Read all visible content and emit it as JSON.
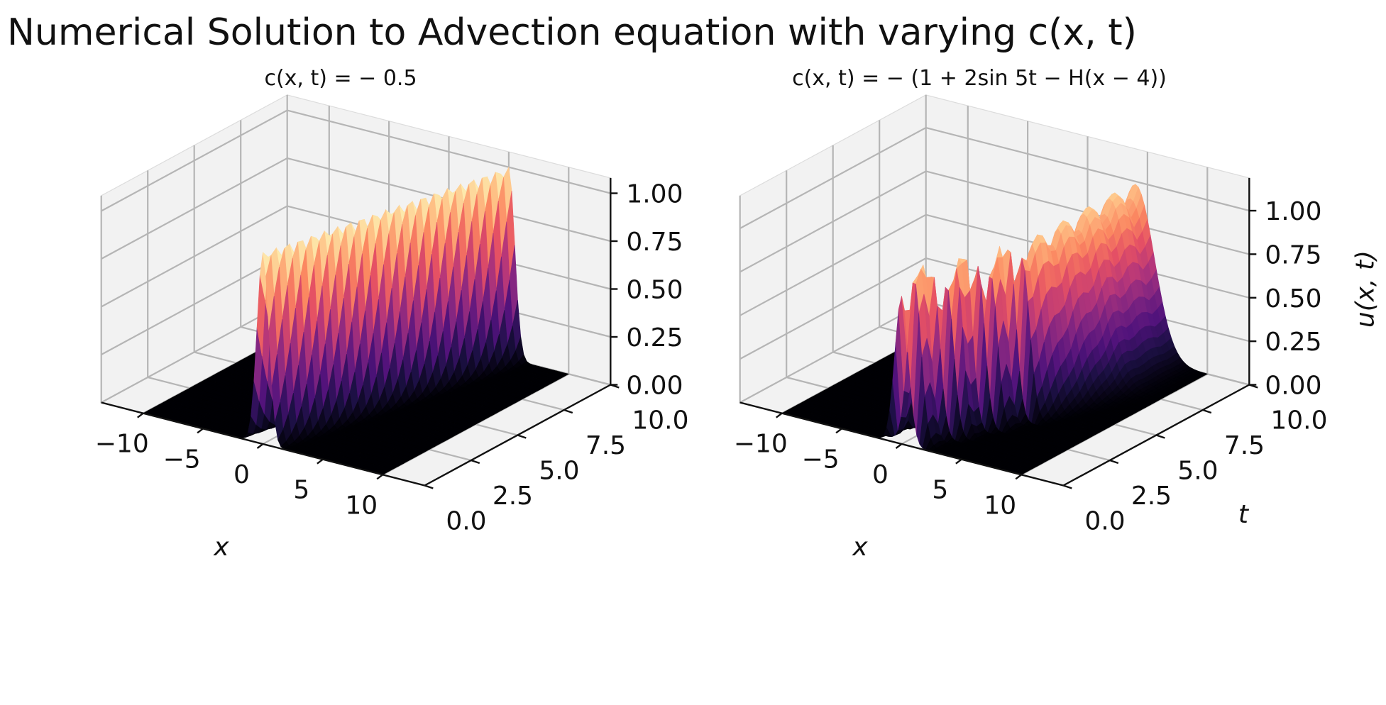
{
  "figure": {
    "title": "Numerical Solution to Advection equation with varying c(x, t)"
  },
  "chart_data": [
    {
      "type": "surface3d",
      "title": "c(x, t) = − 0.5",
      "xlabel": "x",
      "ylabel": "",
      "zlabel": "",
      "x_ticks": [
        "−10",
        "−5",
        "0",
        "5",
        "10"
      ],
      "t_ticks": [
        "0.0",
        "2.5",
        "5.0",
        "7.5",
        "10.0"
      ],
      "z_ticks": [
        "0.00",
        "0.25",
        "0.50",
        "0.75",
        "1.00"
      ],
      "xlim": [
        -12,
        12
      ],
      "tlim": [
        0,
        10
      ],
      "zlim": [
        0,
        1
      ],
      "colormap": "magma",
      "pulse": {
        "x0_at_t0": 0,
        "speed": 0.5,
        "width": 0.7,
        "amplitude": 1.0
      }
    },
    {
      "type": "surface3d",
      "title": "c(x, t) = − (1 + 2sin 5t − H(x − 4))",
      "xlabel": "x",
      "ylabel": "t",
      "zlabel": "u(x, t)",
      "x_ticks": [
        "−10",
        "−5",
        "0",
        "5",
        "10"
      ],
      "t_ticks": [
        "0.0",
        "2.5",
        "5.0",
        "7.5",
        "10.0"
      ],
      "z_ticks": [
        "0.00",
        "0.25",
        "0.50",
        "0.75",
        "1.00"
      ],
      "xlim": [
        -12,
        12
      ],
      "tlim": [
        0,
        10
      ],
      "zlim": [
        0,
        1.1
      ],
      "colormap": "magma",
      "pulse": {
        "x0_at_t0": 0,
        "x_stop": 4,
        "width": 0.8,
        "amplitude": 1.0
      }
    }
  ]
}
